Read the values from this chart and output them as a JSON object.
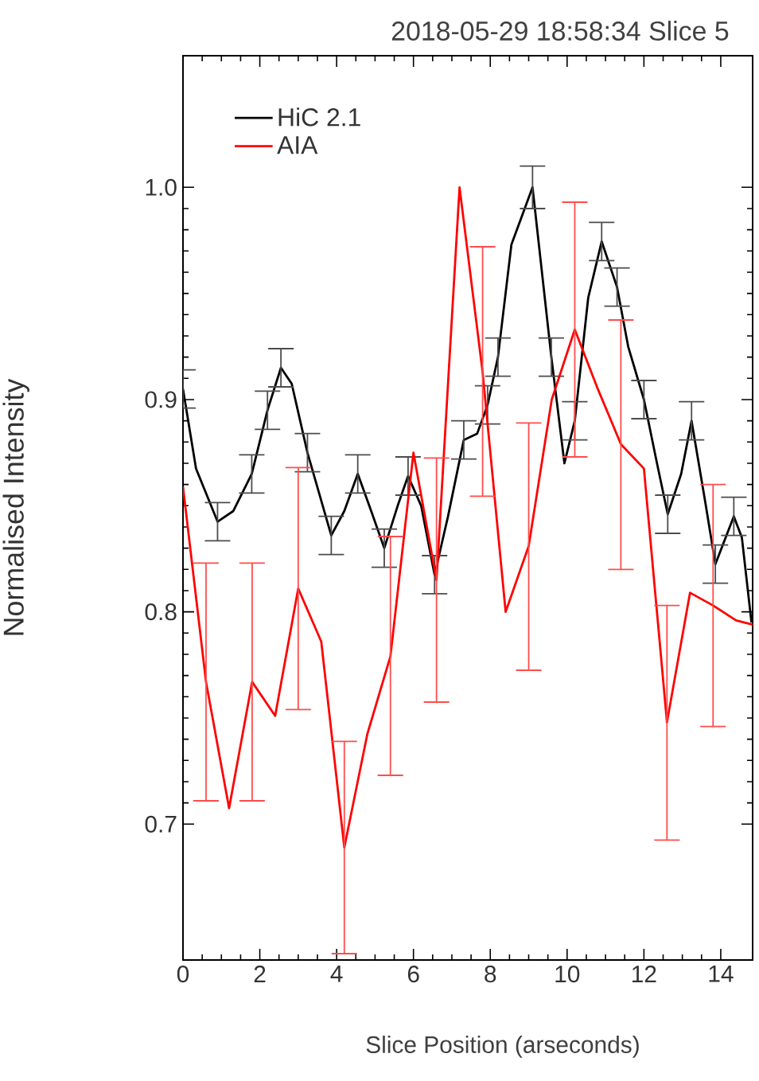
{
  "chart_data": {
    "type": "line",
    "title": "2018-05-29 18:58:34 Slice 5",
    "xlabel": "Slice Position (arseconds)",
    "ylabel": "Normalised Intensity",
    "xlim": [
      0,
      14.83
    ],
    "ylim": [
      0.636,
      1.062
    ],
    "xticks": [
      0,
      2,
      4,
      6,
      8,
      10,
      12,
      14
    ],
    "yticks": [
      0.7,
      0.8,
      0.9,
      {
        "value": 1.0,
        "label": "1.0"
      }
    ],
    "grid": false,
    "legend": "top left",
    "line_style": "solid",
    "marker": "none",
    "series": [
      {
        "name": "HiC 2.1",
        "color": "#000000",
        "x": [
          0,
          0.34,
          0.9,
          1.31,
          1.79,
          2.2,
          2.55,
          2.83,
          3.24,
          3.86,
          4.2,
          4.55,
          4.9,
          5.24,
          5.59,
          5.86,
          6.2,
          6.55,
          6.9,
          7.31,
          7.66,
          7.93,
          8.2,
          8.55,
          9.1,
          9.59,
          9.93,
          10.2,
          10.55,
          10.9,
          11.3,
          11.59,
          12.0,
          12.34,
          12.62,
          12.97,
          13.24,
          13.59,
          13.86,
          14.34,
          14.55,
          14.8
        ],
        "values": [
          0.905,
          0.8675,
          0.8425,
          0.8475,
          0.865,
          0.895,
          0.915,
          0.9075,
          0.875,
          0.836,
          0.8475,
          0.865,
          0.8475,
          0.83,
          0.85,
          0.864,
          0.85,
          0.8175,
          0.845,
          0.881,
          0.884,
          0.8975,
          0.92,
          0.973,
          1.0,
          0.92,
          0.87,
          0.89,
          0.948,
          0.9745,
          0.953,
          0.925,
          0.9,
          0.87,
          0.846,
          0.865,
          0.89,
          0.8525,
          0.8225,
          0.845,
          0.835,
          0.795
        ],
        "errors": [
          0.009,
          null,
          0.009,
          null,
          0.009,
          0.009,
          0.009,
          null,
          0.009,
          0.009,
          null,
          0.009,
          null,
          0.009,
          null,
          0.009,
          null,
          0.009,
          null,
          0.009,
          null,
          0.009,
          0.009,
          null,
          0.01,
          0.009,
          null,
          0.009,
          null,
          0.009,
          0.009,
          null,
          0.009,
          null,
          0.009,
          null,
          0.009,
          null,
          0.009,
          0.009,
          null,
          null
        ]
      },
      {
        "name": "AIA",
        "color": "#ff0000",
        "x": [
          0,
          0.6,
          1.2,
          1.8,
          2.4,
          3.0,
          3.6,
          4.2,
          4.8,
          5.4,
          6.0,
          6.6,
          7.2,
          7.8,
          8.4,
          9.0,
          9.6,
          10.2,
          10.8,
          11.4,
          12.0,
          12.6,
          13.2,
          13.8,
          14.4,
          14.83
        ],
        "values": [
          0.859,
          0.767,
          0.7075,
          0.767,
          0.751,
          0.811,
          0.786,
          0.689,
          0.7425,
          0.779,
          0.875,
          0.815,
          1.0,
          0.913,
          0.8,
          0.831,
          0.9,
          0.933,
          0.905,
          0.879,
          0.8675,
          0.748,
          0.809,
          0.803,
          0.796,
          0.794
        ],
        "errors": [
          null,
          [
            0.711,
            0.823
          ],
          null,
          [
            0.711,
            0.823
          ],
          null,
          [
            0.754,
            0.868
          ],
          null,
          [
            0.639,
            0.739
          ],
          null,
          [
            0.723,
            0.8355
          ],
          null,
          [
            0.7575,
            0.8725
          ],
          null,
          [
            0.8545,
            0.972
          ],
          null,
          [
            0.7725,
            0.889
          ],
          null,
          [
            0.873,
            0.993
          ],
          null,
          [
            0.82,
            0.9375
          ],
          null,
          [
            0.6925,
            0.803
          ],
          null,
          [
            0.746,
            0.86
          ],
          null,
          null
        ]
      }
    ]
  }
}
